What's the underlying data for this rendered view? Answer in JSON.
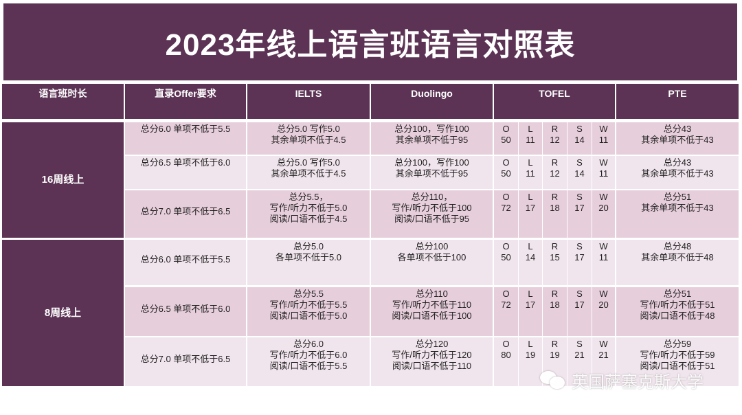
{
  "title": "2023年线上语言班语言对照表",
  "headers": {
    "duration": "语言班时长",
    "offer": "直录Offer要求",
    "ielts": "IELTS",
    "duolingo": "Duolingo",
    "toefl": "TOFEL",
    "pte": "PTE"
  },
  "groups": [
    {
      "label": "16周线上",
      "rows": [
        {
          "offer": "总分6.0 单项不低于5.5",
          "ielts": [
            "总分5.0 写作5.0",
            "其余单项不低于4.5"
          ],
          "duolingo": [
            "总分100，写作100",
            "其余单项不低于95"
          ],
          "toefl": {
            "O": "50",
            "L": "11",
            "R": "12",
            "S": "14",
            "W": "11"
          },
          "pte": [
            "总分43",
            "其余单项不低于43"
          ]
        },
        {
          "offer": "总分6.5 单项不低于6.0",
          "ielts": [
            "总分5.0 写作5.0",
            "其余单项不低于4.5"
          ],
          "duolingo": [
            "总分100，写作100",
            "其余单项不低于95"
          ],
          "toefl": {
            "O": "50",
            "L": "11",
            "R": "12",
            "S": "14",
            "W": "11"
          },
          "pte": [
            "总分43",
            "其余单项不低于43"
          ]
        },
        {
          "offer": "总分7.0 单项不低于6.5",
          "ielts": [
            "总分5.5，",
            "写作/听力不低于5.0",
            "阅读/口语不低于4.5"
          ],
          "duolingo": [
            "总分110，",
            "写作/听力不低于100",
            "阅读/口语不低于95"
          ],
          "toefl": {
            "O": "72",
            "L": "17",
            "R": "18",
            "S": "17",
            "W": "20"
          },
          "pte": [
            "总分51",
            "其余单项不低于43"
          ]
        }
      ]
    },
    {
      "label": "8周线上",
      "rows": [
        {
          "offer": "总分6.0 单项不低于5.5",
          "ielts": [
            "总分5.0",
            "各单项不低于5.0"
          ],
          "duolingo": [
            "总分100",
            "各单项不低于100"
          ],
          "toefl": {
            "O": "50",
            "L": "14",
            "R": "15",
            "S": "17",
            "W": "11"
          },
          "pte": [
            "总分48",
            "其余单项不低于48"
          ]
        },
        {
          "offer": "总分6.5 单项不低于6.0",
          "ielts": [
            "总分5.5",
            "写作/听力不低于5.5",
            "阅读/口语不低于5.0"
          ],
          "duolingo": [
            "总分110",
            "写作/听力不低于110",
            "阅读/口语不低于100"
          ],
          "toefl": {
            "O": "72",
            "L": "17",
            "R": "18",
            "S": "17",
            "W": "20"
          },
          "pte": [
            "总分51",
            "写作/听力不低于51",
            "阅读/口语不低于48"
          ]
        },
        {
          "offer": "总分7.0 单项不低于6.5",
          "ielts": [
            "总分6.0",
            "写作/听力不低于6.0",
            "阅读/口语不低于5.5"
          ],
          "duolingo": [
            "总分120",
            "写作/听力不低于120",
            "阅读/口语不低于110"
          ],
          "toefl": {
            "O": "80",
            "L": "19",
            "R": "19",
            "S": "21",
            "W": "21"
          },
          "pte": [
            "总分59",
            "写作/听力不低于59",
            "阅读/口语不低于51"
          ]
        }
      ]
    }
  ],
  "toefl_labels": [
    "O",
    "L",
    "R",
    "S",
    "W"
  ],
  "watermark": {
    "icon": "wechat-icon",
    "text": "英国萨塞克斯大学"
  },
  "colors": {
    "primary": "#5c3354",
    "row_dark": "#e7cedb",
    "row_light": "#f1e5ed"
  }
}
